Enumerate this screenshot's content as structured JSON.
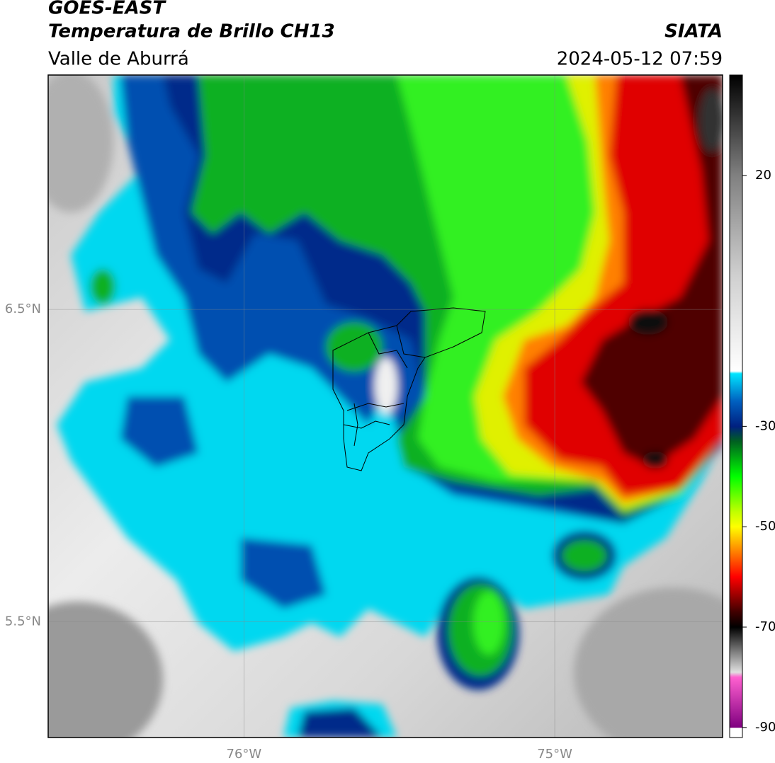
{
  "header": {
    "satellite": "GOES-EAST",
    "product": "Temperatura de Brillo CH13",
    "region": "Valle de Aburrá",
    "source": "SIATA",
    "datetime": "2024-05-12 07:59"
  },
  "map": {
    "xlim": [
      -76.63,
      -74.46
    ],
    "ylim": [
      5.13,
      7.25
    ],
    "grid": true,
    "xticks": [
      {
        "value": -76,
        "label": "76°W"
      },
      {
        "value": -75,
        "label": "75°W"
      }
    ],
    "yticks": [
      {
        "value": 6.5,
        "label": "6.5°N"
      },
      {
        "value": 5.5,
        "label": "5.5°N"
      }
    ]
  },
  "colorbar": {
    "lim": [
      -92,
      40
    ],
    "ticks": [
      20,
      -30,
      -50,
      -70,
      -90
    ],
    "colormap": [
      {
        "value": 40,
        "color": "#000000"
      },
      {
        "value": 30,
        "color": "#404040"
      },
      {
        "value": 20,
        "color": "#808080"
      },
      {
        "value": 0,
        "color": "#d0d0d0"
      },
      {
        "value": -19,
        "color": "#ffffff"
      },
      {
        "value": -19.5,
        "color": "#00e5ff"
      },
      {
        "value": -25,
        "color": "#0060c0"
      },
      {
        "value": -30,
        "color": "#002080"
      },
      {
        "value": -33,
        "color": "#006020"
      },
      {
        "value": -40,
        "color": "#00ff00"
      },
      {
        "value": -47,
        "color": "#c0ff00"
      },
      {
        "value": -50,
        "color": "#ffff00"
      },
      {
        "value": -55,
        "color": "#ff8000"
      },
      {
        "value": -60,
        "color": "#ff0000"
      },
      {
        "value": -67,
        "color": "#400000"
      },
      {
        "value": -70,
        "color": "#000000"
      },
      {
        "value": -75,
        "color": "#808080"
      },
      {
        "value": -79,
        "color": "#e0e0e0"
      },
      {
        "value": -80,
        "color": "#ff60d0"
      },
      {
        "value": -90,
        "color": "#800080"
      },
      {
        "value": -90.1,
        "color": "#ffffff"
      }
    ]
  }
}
